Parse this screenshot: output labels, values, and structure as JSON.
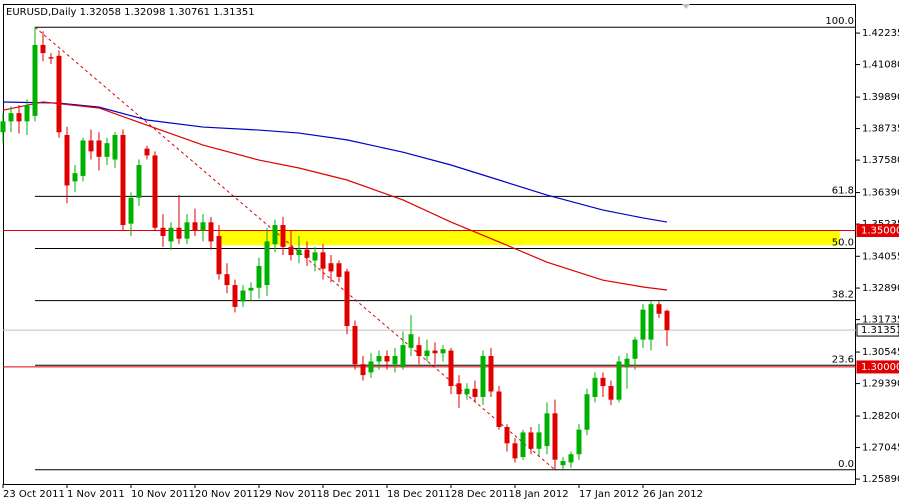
{
  "chart_data": {
    "type": "candlestick",
    "title": "EURUSD,Daily  1.32058 1.32098 1.30761 1.31351",
    "categories": [
      "23 Oct 2011",
      null,
      null,
      null,
      null,
      null,
      null,
      null,
      "1 Nov 2011",
      null,
      null,
      null,
      null,
      null,
      null,
      null,
      "10 Nov 2011",
      null,
      null,
      null,
      null,
      null,
      null,
      null,
      "20 Nov 2011",
      null,
      null,
      null,
      null,
      null,
      null,
      null,
      "29 Nov 2011",
      null,
      null,
      null,
      null,
      null,
      null,
      null,
      "8 Dec 2011",
      null,
      null,
      null,
      null,
      null,
      null,
      null,
      "18 Dec 2011",
      null,
      null,
      null,
      null,
      null,
      null,
      null,
      "28 Dec 2011",
      null,
      null,
      null,
      null,
      null,
      null,
      null,
      "8 Jan 2012",
      null,
      null,
      null,
      null,
      null,
      null,
      null,
      "17 Jan 2012",
      null,
      null,
      null,
      null,
      null,
      null,
      null,
      "26 Jan 2012",
      null,
      null,
      null
    ],
    "ohlc": [
      [
        1.386,
        1.393,
        1.382,
        1.39
      ],
      [
        1.39,
        1.3955,
        1.386,
        1.393
      ],
      [
        1.393,
        1.396,
        1.3855,
        1.39
      ],
      [
        1.39,
        1.398,
        1.385,
        1.396
      ],
      [
        1.392,
        1.4246,
        1.39,
        1.418
      ],
      [
        1.418,
        1.423,
        1.412,
        1.415
      ],
      [
        1.4135,
        1.415,
        1.411,
        1.413
      ],
      [
        1.414,
        1.416,
        1.384,
        1.386
      ],
      [
        1.385,
        1.388,
        1.36,
        1.3665
      ],
      [
        1.368,
        1.374,
        1.364,
        1.371
      ],
      [
        1.37,
        1.384,
        1.368,
        1.383
      ],
      [
        1.383,
        1.387,
        1.376,
        1.379
      ],
      [
        1.383,
        1.386,
        1.372,
        1.377
      ],
      [
        1.377,
        1.384,
        1.374,
        1.382
      ],
      [
        1.376,
        1.386,
        1.373,
        1.385
      ],
      [
        1.385,
        1.387,
        1.35,
        1.352
      ],
      [
        1.3525,
        1.364,
        1.348,
        1.362
      ],
      [
        1.362,
        1.376,
        1.359,
        1.374
      ],
      [
        1.38,
        1.381,
        1.376,
        1.3775
      ],
      [
        1.3775,
        1.379,
        1.35,
        1.351
      ],
      [
        1.351,
        1.356,
        1.344,
        1.348
      ],
      [
        1.346,
        1.353,
        1.343,
        1.351
      ],
      [
        1.351,
        1.363,
        1.345,
        1.347
      ],
      [
        1.347,
        1.356,
        1.345,
        1.353
      ],
      [
        1.353,
        1.358,
        1.348,
        1.35
      ],
      [
        1.35,
        1.356,
        1.346,
        1.353
      ],
      [
        1.353,
        1.355,
        1.343,
        1.346
      ],
      [
        1.348,
        1.352,
        1.332,
        1.334
      ],
      [
        1.334,
        1.338,
        1.327,
        1.33
      ],
      [
        1.33,
        1.332,
        1.32,
        1.322
      ],
      [
        1.324,
        1.33,
        1.322,
        1.328
      ],
      [
        1.328,
        1.331,
        1.324,
        1.329
      ],
      [
        1.329,
        1.34,
        1.325,
        1.337
      ],
      [
        1.33,
        1.351,
        1.326,
        1.346
      ],
      [
        1.345,
        1.354,
        1.342,
        1.352
      ],
      [
        1.352,
        1.355,
        1.341,
        1.344
      ],
      [
        1.344,
        1.35,
        1.339,
        1.341
      ],
      [
        1.341,
        1.348,
        1.338,
        1.343
      ],
      [
        1.343,
        1.346,
        1.337,
        1.34
      ],
      [
        1.339,
        1.344,
        1.335,
        1.342
      ],
      [
        1.342,
        1.345,
        1.332,
        1.336
      ],
      [
        1.338,
        1.341,
        1.331,
        1.335
      ],
      [
        1.338,
        1.339,
        1.331,
        1.333
      ],
      [
        1.335,
        1.336,
        1.312,
        1.315
      ],
      [
        1.315,
        1.317,
        1.299,
        1.301
      ],
      [
        1.301,
        1.304,
        1.295,
        1.297
      ],
      [
        1.298,
        1.305,
        1.296,
        1.302
      ],
      [
        1.302,
        1.306,
        1.299,
        1.304
      ],
      [
        1.304,
        1.306,
        1.299,
        1.302
      ],
      [
        1.301,
        1.307,
        1.298,
        1.304
      ],
      [
        1.3,
        1.313,
        1.299,
        1.308
      ],
      [
        1.307,
        1.319,
        1.304,
        1.312
      ],
      [
        1.308,
        1.311,
        1.301,
        1.304
      ],
      [
        1.304,
        1.31,
        1.302,
        1.306
      ],
      [
        1.306,
        1.309,
        1.301,
        1.305
      ],
      [
        1.305,
        1.308,
        1.302,
        1.3065
      ],
      [
        1.306,
        1.307,
        1.29,
        1.293
      ],
      [
        1.294,
        1.297,
        1.285,
        1.29
      ],
      [
        1.29,
        1.294,
        1.288,
        1.292
      ],
      [
        1.292,
        1.295,
        1.287,
        1.289
      ],
      [
        1.289,
        1.306,
        1.286,
        1.304
      ],
      [
        1.304,
        1.307,
        1.289,
        1.291
      ],
      [
        1.291,
        1.293,
        1.277,
        1.278
      ],
      [
        1.278,
        1.279,
        1.269,
        1.272
      ],
      [
        1.272,
        1.274,
        1.265,
        1.2665
      ],
      [
        1.267,
        1.277,
        1.266,
        1.276
      ],
      [
        1.276,
        1.278,
        1.268,
        1.27
      ],
      [
        1.27,
        1.279,
        1.267,
        1.276
      ],
      [
        1.271,
        1.287,
        1.268,
        1.283
      ],
      [
        1.283,
        1.288,
        1.2624,
        1.266
      ],
      [
        1.264,
        1.267,
        1.2625,
        1.2655
      ],
      [
        1.265,
        1.269,
        1.263,
        1.268
      ],
      [
        1.268,
        1.279,
        1.266,
        1.277
      ],
      [
        1.277,
        1.292,
        1.275,
        1.29
      ],
      [
        1.289,
        1.298,
        1.287,
        1.296
      ],
      [
        1.296,
        1.298,
        1.289,
        1.293
      ],
      [
        1.293,
        1.295,
        1.286,
        1.288
      ],
      [
        1.288,
        1.304,
        1.287,
        1.302
      ],
      [
        1.3,
        1.305,
        1.292,
        1.303
      ],
      [
        1.303,
        1.311,
        1.299,
        1.31
      ],
      [
        1.31,
        1.323,
        1.307,
        1.321
      ],
      [
        1.31,
        1.324,
        1.306,
        1.323
      ],
      [
        1.323,
        1.324,
        1.318,
        1.3195
      ],
      [
        1.32058,
        1.32098,
        1.30761,
        1.31351
      ]
    ],
    "up_color": "#00b000",
    "down_color": "#e00000",
    "moving_averages": [
      {
        "color": "#0000c8",
        "x": [
          0,
          7,
          12,
          18,
          25,
          32,
          37,
          43,
          50,
          56,
          62,
          68,
          75,
          80,
          83
        ],
        "values": [
          1.3971,
          1.3967,
          1.3952,
          1.3905,
          1.3879,
          1.3868,
          1.3857,
          1.3832,
          1.3787,
          1.374,
          1.3685,
          1.363,
          1.3575,
          1.3546,
          1.3531
        ]
      },
      {
        "color": "#e00000",
        "x": [
          0,
          5,
          12,
          18,
          25,
          32,
          37,
          43,
          50,
          56,
          62,
          68,
          75,
          80,
          83
        ],
        "values": [
          1.3941,
          1.3971,
          1.3949,
          1.3886,
          1.3813,
          1.3758,
          1.3729,
          1.3685,
          1.3612,
          1.3531,
          1.3458,
          1.3384,
          1.3318,
          1.3293,
          1.3282
        ]
      }
    ],
    "zone": {
      "x": [
        27,
        104.6
      ],
      "ylim": [
        1.3446,
        1.35
      ],
      "color": "#ffff00"
    },
    "fibo": {
      "x": [
        4,
        69
      ],
      "color": "#e00000",
      "levels": [
        {
          "text": "100.0",
          "price": 1.4245
        },
        {
          "text": "61.8",
          "price": 1.3625
        },
        {
          "text": "50.0",
          "price": 1.3434
        },
        {
          "text": "38.2",
          "price": 1.3243
        },
        {
          "text": "23.6",
          "price": 1.3006
        },
        {
          "text": "0.0",
          "price": 1.2623
        }
      ]
    },
    "hlines": [
      {
        "value": 1.35,
        "label": "1.35000",
        "color": "#e00000"
      },
      {
        "value": 1.3,
        "label": "1.30000",
        "color": "#e00000"
      }
    ],
    "bid": {
      "value": 1.31351,
      "label": "1.31351",
      "color": "#c0c0c0"
    },
    "ylim": [
      1.2571,
      1.433
    ],
    "yticks": [
      1.42235,
      {
        "value": 1.4108,
        "label": "1.41080"
      },
      {
        "value": 1.3989,
        "label": "1.39890"
      },
      1.38735,
      {
        "value": 1.3758,
        "label": "1.37580"
      },
      {
        "value": 1.3639,
        "label": "1.36390"
      },
      1.35235,
      1.34055,
      {
        "value": 1.3289,
        "label": "1.32890"
      },
      1.31735,
      1.30545,
      {
        "value": 1.2939,
        "label": "1.29390"
      },
      {
        "value": 1.282,
        "label": "1.28200"
      },
      1.27045,
      {
        "value": 1.2589,
        "label": "1.25890"
      }
    ]
  }
}
